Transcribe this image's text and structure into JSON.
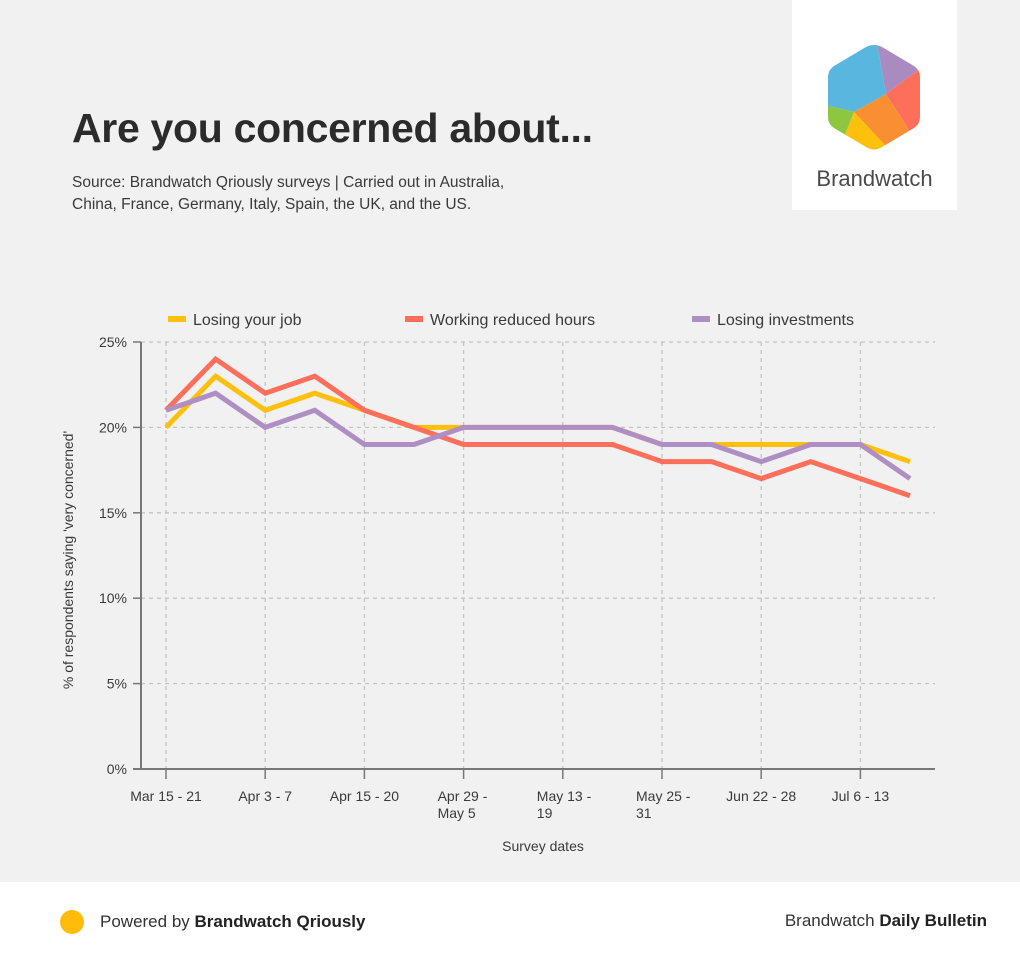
{
  "header": {
    "title": "Are you concerned about...",
    "subtitle_line1": "Source: Brandwatch Qriously surveys | Carried out in Australia,",
    "subtitle_line2": "China, France, Germany, Italy, Spain, the UK, and the US."
  },
  "logo": {
    "name": "Brandwatch",
    "icon": "brandwatch-hexagon-logo",
    "segment_colors": [
      "#58b6df",
      "#a98bbf",
      "#fe6f5b",
      "#f98e32",
      "#ffbf0d",
      "#8dc63f"
    ]
  },
  "footer": {
    "left_prefix": "Powered by ",
    "left_bold": "Brandwatch Qriously",
    "right_prefix": "Brandwatch ",
    "right_bold": "Daily Bulletin",
    "dot_color": "#ffbc0a"
  },
  "chart_data": {
    "type": "line",
    "title": "Are you concerned about...",
    "xlabel": "Survey dates",
    "ylabel": "% of respondents saying 'very concerned'",
    "ylim": [
      0,
      25
    ],
    "yticks": [
      0,
      5,
      10,
      15,
      20,
      25
    ],
    "ytick_labels": [
      "0%",
      "5%",
      "10%",
      "15%",
      "20%",
      "25%"
    ],
    "grid": true,
    "legend_position": "top",
    "x_count": 16,
    "xtick_indices": [
      0,
      2,
      4,
      6,
      8,
      10,
      12,
      14
    ],
    "xtick_labels": [
      [
        "Mar 15 - 21"
      ],
      [
        "Apr 3 - 7"
      ],
      [
        "Apr 15 - 20"
      ],
      [
        "Apr 29 -",
        "May 5"
      ],
      [
        "May 13 -",
        "19"
      ],
      [
        "May 25 -",
        "31"
      ],
      [
        "Jun 22 - 28"
      ],
      [
        "Jul 6 - 13"
      ]
    ],
    "series": [
      {
        "name": "Losing your job",
        "color": "#ffbf0d",
        "values": [
          20,
          23,
          21,
          22,
          21,
          20,
          20,
          20,
          20,
          20,
          19,
          19,
          19,
          19,
          19,
          18
        ]
      },
      {
        "name": "Working reduced hours",
        "color": "#fe6f5b",
        "values": [
          21,
          24,
          22,
          23,
          21,
          20,
          19,
          19,
          19,
          19,
          18,
          18,
          17,
          18,
          17,
          16
        ]
      },
      {
        "name": "Losing investments",
        "color": "#af8ec3",
        "values": [
          21,
          22,
          20,
          21,
          19,
          19,
          20,
          20,
          20,
          20,
          19,
          19,
          18,
          19,
          19,
          17
        ]
      }
    ]
  }
}
